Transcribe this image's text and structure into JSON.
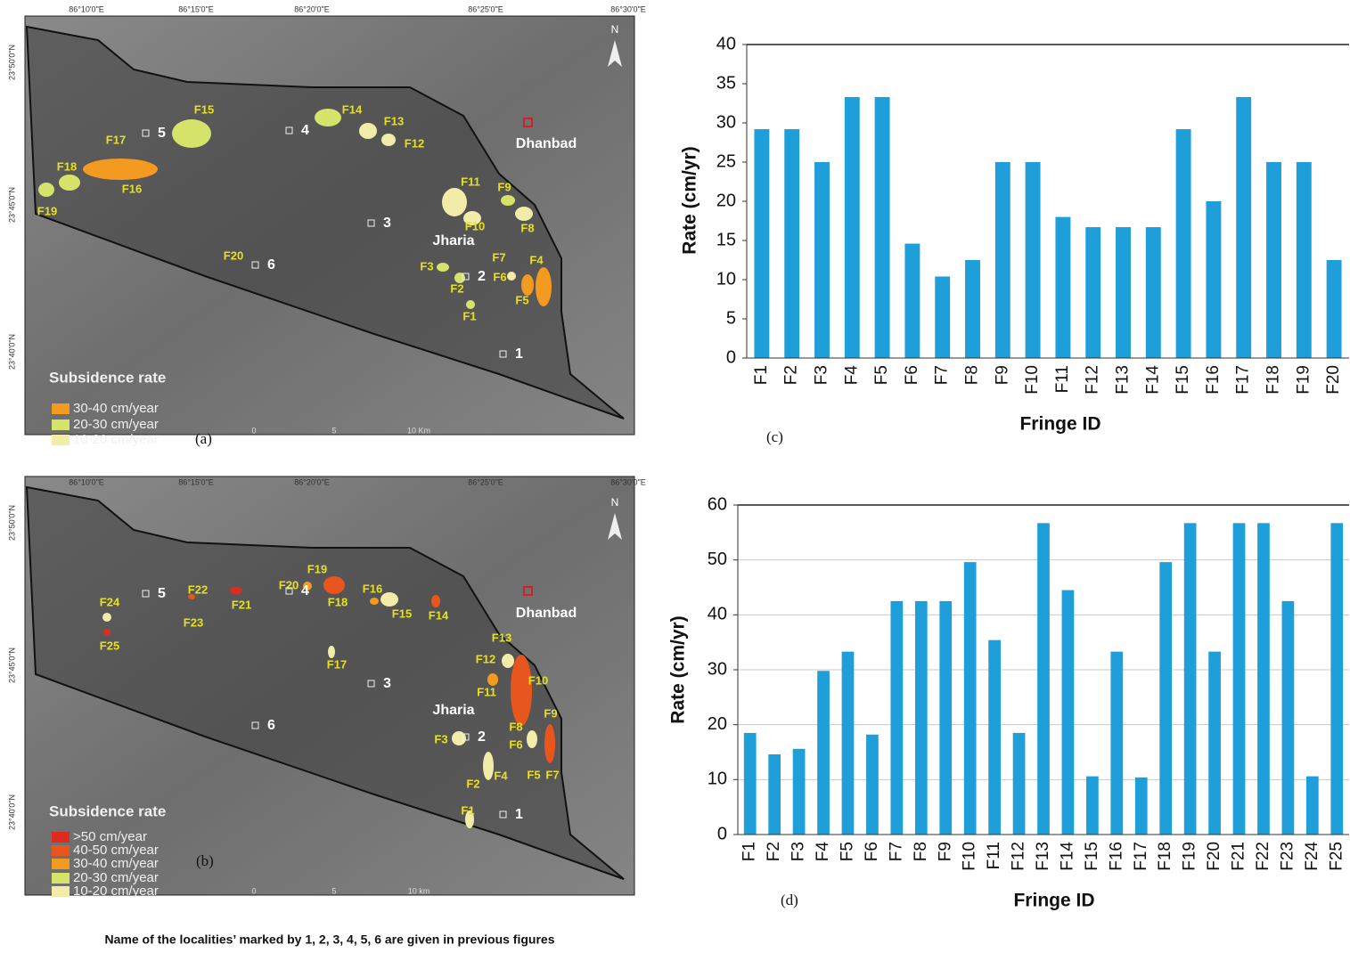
{
  "chart_data": [
    {
      "type": "bar",
      "panel_label": "(c)",
      "x_label": "Fringe ID",
      "y_label": "Rate  (cm/yr)",
      "color": "#1f9fd9",
      "grid": false,
      "categories": [
        "F1",
        "F2",
        "F3",
        "F4",
        "F5",
        "F6",
        "F7",
        "F8",
        "F9",
        "F10",
        "F11",
        "F12",
        "F13",
        "F14",
        "F15",
        "F16",
        "F17",
        "F18",
        "F19",
        "F20"
      ],
      "values": [
        29.2,
        29.2,
        25,
        33.3,
        33.3,
        14.6,
        10.4,
        12.5,
        25,
        25,
        18,
        16.7,
        16.7,
        16.7,
        29.2,
        20,
        33.3,
        25,
        25,
        12.5
      ],
      "ylim": [
        0,
        40
      ],
      "yticks": [
        0,
        5,
        10,
        15,
        20,
        25,
        30,
        35,
        40
      ]
    },
    {
      "type": "bar",
      "panel_label": "(d)",
      "x_label": "Fringe ID",
      "y_label": "Rate (cm/yr)",
      "color": "#1f9fd9",
      "grid": true,
      "categories": [
        "F1",
        "F2",
        "F3",
        "F4",
        "F5",
        "F6",
        "F7",
        "F8",
        "F9",
        "F10",
        "F11",
        "F12",
        "F13",
        "F14",
        "F15",
        "F16",
        "F17",
        "F18",
        "F19",
        "F20",
        "F21",
        "F22",
        "F23",
        "F24",
        "F25"
      ],
      "values": [
        18.5,
        14.6,
        15.6,
        29.8,
        33.3,
        18.2,
        42.5,
        42.5,
        42.5,
        49.6,
        35.4,
        18.5,
        56.7,
        44.5,
        10.6,
        33.3,
        10.4,
        49.6,
        56.7,
        33.3,
        56.7,
        56.7,
        42.5,
        10.6,
        56.7
      ],
      "ylim": [
        0,
        60
      ],
      "yticks": [
        0,
        10,
        20,
        30,
        40,
        50,
        60
      ]
    }
  ],
  "maps": [
    {
      "panel_label": "(a)",
      "north": "N",
      "lon_labels": [
        "86°10'0\"E",
        "86°15'0\"E",
        "86°20'0\"E",
        "86°25'0\"E",
        "86°30'0\"E"
      ],
      "lat_labels": [
        "23°50'0\"N",
        "23°45'0\"N",
        "23°40'0\"N"
      ],
      "fringe_labels": [
        "F1",
        "F2",
        "F3",
        "F4",
        "F5",
        "F6",
        "F7",
        "F8",
        "F9",
        "F10",
        "F11",
        "F12",
        "F13",
        "F14",
        "F15",
        "F16",
        "F17",
        "F18",
        "F19",
        "F20"
      ],
      "localities": [
        "1",
        "2",
        "3",
        "4",
        "5",
        "6"
      ],
      "places": [
        "Dhanbad",
        "Jharia"
      ],
      "legend_title": "Subsidence rate",
      "legend_items": [
        "30-40 cm/year",
        "20-30 cm/year",
        "10-20 cm/year"
      ],
      "legend_colors": [
        "#f39a20",
        "#d6e36a",
        "#f1eca8"
      ],
      "scale_labels": [
        "0",
        "5",
        "10 Km"
      ]
    },
    {
      "panel_label": "(b)",
      "north": "N",
      "lon_labels": [
        "86°10'0\"E",
        "86°15'0\"E",
        "86°20'0\"E",
        "86°25'0\"E",
        "86°30'0\"E"
      ],
      "lat_labels": [
        "23°50'0\"N",
        "23°45'0\"N",
        "23°40'0\"N"
      ],
      "fringe_labels": [
        "F1",
        "F2",
        "F3",
        "F4",
        "F5",
        "F6",
        "F7",
        "F8",
        "F9",
        "F10",
        "F11",
        "F12",
        "F13",
        "F14",
        "F15",
        "F16",
        "F17",
        "F18",
        "F19",
        "F20",
        "F21",
        "F22",
        "F23",
        "F24",
        "F25"
      ],
      "localities": [
        "1",
        "2",
        "3",
        "4",
        "5",
        "6"
      ],
      "places": [
        "Dhanbad",
        "Jharia"
      ],
      "legend_title": "Subsidence rate",
      "legend_items": [
        ">50 cm/year",
        "40-50 cm/year",
        "30-40 cm/year",
        "20-30 cm/year",
        "10-20 cm/year"
      ],
      "legend_colors": [
        "#e02a20",
        "#e8561e",
        "#f39a20",
        "#d6e36a",
        "#f1eca8"
      ],
      "scale_labels": [
        "0",
        "5",
        "10 km"
      ]
    }
  ],
  "caption": "Name of the localities’ marked by 1, 2, 3, 4, 5, 6 are given in previous figures"
}
